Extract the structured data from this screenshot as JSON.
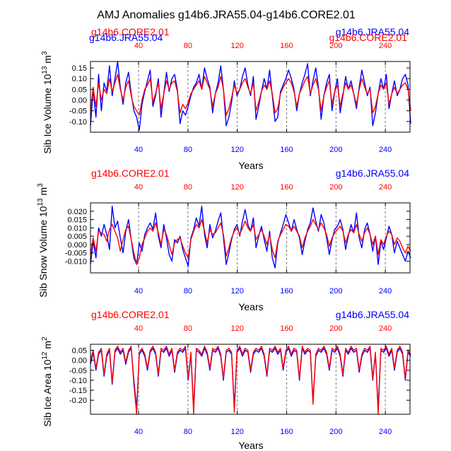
{
  "title": "AMJ Anomalies g14b6.JRA55.04-g14b6.CORE2.01",
  "colors": {
    "red": "#ff0000",
    "blue": "#0000ff",
    "black": "#000000",
    "grid": "#555555"
  },
  "chart_data": [
    {
      "type": "line",
      "ylabel_main": "Sib Ice Volume 10",
      "ylabel_exp": "13",
      "ylabel_unit": " m",
      "ylabel_unit_exp": "3",
      "xlabel": "Years",
      "xlim": [
        1,
        260
      ],
      "ylim": [
        -0.15,
        0.18
      ],
      "yticks": [
        -0.1,
        -0.05,
        0.0,
        0.05,
        0.1,
        0.15
      ],
      "ytick_labels": [
        "-0.10",
        "-0.05",
        "0.00",
        "0.05",
        "0.10",
        "0.15"
      ],
      "x_red_ticks": [
        40,
        80,
        120,
        160,
        200,
        240
      ],
      "x_blue_ticks": [
        40,
        80,
        120,
        160,
        200,
        240
      ],
      "gridlines_x": [
        40,
        80,
        120,
        160,
        200,
        240
      ],
      "legend_red": "g14b6.CORE2.01",
      "legend_blue": "g14b6.JRA55.04",
      "legend_red_overlap": "g14b6.CORE2.01",
      "legend_blue_overlap": "g14b6.JRA55.04",
      "series": [
        {
          "name": "g14b6.JRA55.04",
          "color": "blue",
          "x_start": 1,
          "x_step": 2.2,
          "values": [
            -0.12,
            0.05,
            -0.08,
            0.12,
            -0.05,
            0.08,
            0.04,
            0.16,
            0.02,
            0.1,
            0.18,
            0.06,
            -0.02,
            0.08,
            0.13,
            0.03,
            -0.05,
            -0.08,
            -0.14,
            -0.02,
            0.04,
            0.09,
            0.14,
            -0.03,
            0.02,
            0.1,
            -0.08,
            0.03,
            0.13,
            0.04,
            0.1,
            0.12,
            0.05,
            -0.11,
            -0.05,
            -0.07,
            -0.03,
            0.02,
            0.06,
            0.08,
            0.12,
            0.05,
            0.15,
            0.1,
            0.06,
            -0.06,
            0.03,
            0.08,
            0.16,
            0.05,
            -0.12,
            -0.08,
            -0.01,
            0.09,
            0.02,
            0.05,
            0.11,
            0.15,
            0.07,
            0.02,
            0.11,
            -0.09,
            -0.03,
            0.04,
            0.1,
            0.05,
            0.14,
            0.02,
            -0.1,
            -0.08,
            0.04,
            0.07,
            0.1,
            0.14,
            0.1,
            0.05,
            -0.05,
            0.03,
            0.08,
            0.12,
            0.17,
            0.02,
            0.09,
            0.15,
            0.06,
            -0.09,
            0.02,
            0.08,
            0.12,
            -0.05,
            0.04,
            0.1,
            -0.06,
            0.02,
            0.11,
            0.05,
            0.09,
            0.03,
            -0.04,
            0.06,
            0.14,
            0.08,
            0.02,
            0.06,
            -0.12,
            -0.06,
            0.03,
            0.1,
            0.05,
            0.12,
            -0.04,
            0.03,
            0.09,
            0.02,
            0.05,
            0.1,
            0.12,
            0.07,
            -0.11
          ]
        },
        {
          "name": "g14b6.CORE2.01",
          "color": "red",
          "x_start": 1,
          "x_step": 2.2,
          "values": [
            -0.05,
            0.06,
            -0.03,
            0.08,
            0.0,
            0.05,
            0.03,
            0.1,
            0.04,
            0.08,
            0.12,
            0.05,
            0.0,
            0.06,
            0.09,
            0.02,
            -0.03,
            -0.05,
            -0.07,
            0.0,
            0.05,
            0.07,
            0.1,
            -0.01,
            0.03,
            0.08,
            -0.04,
            0.03,
            0.09,
            0.05,
            0.08,
            0.09,
            0.04,
            -0.06,
            -0.02,
            -0.04,
            -0.01,
            0.03,
            0.05,
            0.07,
            0.09,
            0.05,
            0.11,
            0.08,
            0.05,
            -0.03,
            0.03,
            0.06,
            0.11,
            0.05,
            -0.07,
            -0.04,
            0.01,
            0.07,
            0.03,
            0.05,
            0.08,
            0.1,
            0.06,
            0.03,
            0.08,
            -0.05,
            -0.01,
            0.04,
            0.07,
            0.05,
            0.09,
            0.03,
            -0.06,
            -0.04,
            0.03,
            0.06,
            0.08,
            0.1,
            0.08,
            0.04,
            -0.03,
            0.03,
            0.06,
            0.09,
            0.11,
            0.03,
            0.07,
            0.1,
            0.05,
            -0.05,
            0.02,
            0.06,
            0.09,
            -0.02,
            0.04,
            0.07,
            -0.03,
            0.03,
            0.08,
            0.05,
            0.07,
            0.03,
            -0.02,
            0.05,
            0.1,
            0.06,
            0.03,
            0.05,
            -0.06,
            -0.03,
            0.03,
            0.07,
            0.05,
            0.08,
            -0.02,
            0.03,
            0.06,
            0.03,
            0.05,
            0.07,
            0.08,
            0.05,
            -0.05
          ]
        }
      ]
    },
    {
      "type": "line",
      "ylabel_main": "Sib Snow Volume 10",
      "ylabel_exp": "13",
      "ylabel_unit": " m",
      "ylabel_unit_exp": "3",
      "xlabel": "Years",
      "xlim": [
        1,
        260
      ],
      "ylim": [
        -0.017,
        0.025
      ],
      "yticks": [
        -0.01,
        -0.005,
        0.0,
        0.005,
        0.01,
        0.015,
        0.02
      ],
      "ytick_labels": [
        "-0.010",
        "-0.005",
        "0.000",
        "0.005",
        "0.010",
        "0.015",
        "0.020"
      ],
      "x_red_ticks": [
        40,
        80,
        120,
        160,
        200,
        240
      ],
      "x_blue_ticks": [
        40,
        80,
        120,
        160,
        200,
        240
      ],
      "gridlines_x": [
        40,
        80,
        120,
        160,
        200,
        240
      ],
      "legend_red": "g14b6.CORE2.01",
      "legend_blue": "g14b6.JRA55.04",
      "series": [
        {
          "name": "g14b6.JRA55.04",
          "color": "blue",
          "x_start": 1,
          "x_step": 2.2,
          "values": [
            -0.012,
            0.002,
            -0.008,
            0.01,
            0.005,
            0.012,
            0.006,
            -0.003,
            0.023,
            0.01,
            0.014,
            0.004,
            -0.005,
            0.008,
            0.015,
            0.003,
            -0.008,
            -0.012,
            0.001,
            -0.004,
            0.006,
            0.01,
            0.013,
            0.009,
            0.019,
            0.005,
            -0.002,
            0.012,
            0.004,
            -0.006,
            -0.01,
            0.003,
            0.001,
            0.005,
            -0.003,
            -0.008,
            -0.013,
            0.004,
            0.009,
            0.016,
            0.011,
            0.023,
            0.006,
            -0.002,
            0.012,
            0.004,
            0.008,
            0.014,
            0.019,
            0.004,
            -0.012,
            -0.005,
            0.003,
            0.009,
            0.012,
            0.005,
            0.014,
            0.021,
            0.012,
            0.008,
            0.016,
            -0.002,
            0.005,
            0.011,
            0.003,
            -0.004,
            0.008,
            -0.008,
            -0.014,
            0.001,
            0.007,
            0.012,
            0.018,
            0.013,
            0.008,
            0.015,
            0.009,
            0.004,
            -0.006,
            0.002,
            0.009,
            0.013,
            0.022,
            0.014,
            0.008,
            0.018,
            0.013,
            0.004,
            -0.006,
            0.003,
            0.009,
            0.011,
            0.015,
            0.009,
            -0.003,
            0.005,
            0.012,
            0.007,
            0.019,
            0.004,
            -0.002,
            0.009,
            0.013,
            0.006,
            -0.004,
            0.005,
            -0.012,
            0.002,
            -0.003,
            0.004,
            0.011,
            0.006,
            -0.005,
            0.002,
            -0.002,
            -0.006,
            -0.01,
            -0.004,
            -0.008
          ]
        },
        {
          "name": "g14b6.CORE2.01",
          "color": "red",
          "x_start": 1,
          "x_step": 2.2,
          "values": [
            -0.006,
            0.004,
            -0.004,
            0.008,
            0.007,
            0.006,
            0.002,
            0.009,
            0.012,
            0.008,
            0.004,
            -0.004,
            0.003,
            0.009,
            0.011,
            0.003,
            -0.005,
            -0.012,
            -0.008,
            0.0,
            0.004,
            0.008,
            0.01,
            0.008,
            0.013,
            0.007,
            0.0,
            0.009,
            0.006,
            0.0,
            -0.006,
            0.001,
            0.003,
            0.004,
            -0.001,
            -0.005,
            -0.008,
            0.003,
            0.008,
            0.012,
            0.01,
            0.015,
            0.008,
            0.001,
            0.009,
            0.006,
            0.007,
            0.01,
            0.013,
            0.006,
            -0.007,
            -0.002,
            0.004,
            0.008,
            0.01,
            0.006,
            0.01,
            0.014,
            0.01,
            0.008,
            0.012,
            0.003,
            0.006,
            0.009,
            0.005,
            0.0,
            0.006,
            -0.003,
            -0.008,
            0.002,
            0.006,
            0.009,
            0.012,
            0.011,
            0.008,
            0.011,
            0.008,
            0.005,
            -0.002,
            0.004,
            0.008,
            0.011,
            0.015,
            0.012,
            0.009,
            0.013,
            0.01,
            0.006,
            -0.001,
            0.004,
            0.007,
            0.009,
            0.011,
            0.008,
            0.001,
            0.006,
            0.009,
            0.007,
            0.012,
            0.006,
            0.002,
            0.007,
            0.01,
            0.006,
            0.0,
            0.005,
            -0.006,
            0.003,
            0.0,
            0.005,
            0.008,
            0.006,
            0.0,
            0.004,
            0.002,
            -0.002,
            -0.005,
            -0.001,
            -0.004
          ]
        }
      ]
    },
    {
      "type": "line",
      "ylabel_main": "Sib Ice Area 10",
      "ylabel_exp": "12",
      "ylabel_unit": " m",
      "ylabel_unit_exp": "2",
      "xlabel": "Years",
      "xlim": [
        1,
        260
      ],
      "ylim": [
        -0.27,
        0.08
      ],
      "yticks": [
        -0.2,
        -0.15,
        -0.1,
        -0.05,
        0.0,
        0.05
      ],
      "ytick_labels": [
        "-0.20",
        "-0.15",
        "-0.10",
        "-0.05",
        "0.00",
        "0.05"
      ],
      "x_red_ticks": [
        40,
        80,
        120,
        160,
        200,
        240
      ],
      "x_blue_ticks": [
        40,
        80,
        120,
        160,
        200,
        240
      ],
      "gridlines_x": [
        40,
        80,
        120,
        160,
        200,
        240
      ],
      "legend_red": "g14b6.CORE2.01",
      "legend_blue": "g14b6.JRA55.04",
      "series": [
        {
          "name": "g14b6.JRA55.04",
          "color": "blue",
          "x_start": 1,
          "x_step": 2.2,
          "values": [
            -0.02,
            0.04,
            -0.05,
            0.03,
            0.05,
            -0.08,
            0.02,
            0.05,
            -0.12,
            0.04,
            0.06,
            0.03,
            0.05,
            -0.02,
            0.04,
            0.06,
            -0.1,
            -0.24,
            0.03,
            0.05,
            0.02,
            -0.05,
            0.04,
            0.06,
            0.03,
            -0.08,
            0.05,
            0.04,
            0.06,
            0.02,
            0.05,
            -0.06,
            0.03,
            0.05,
            0.04,
            0.06,
            -0.1,
            0.03,
            -0.24,
            0.05,
            0.04,
            0.02,
            0.06,
            0.03,
            -0.05,
            0.05,
            0.04,
            0.06,
            0.02,
            -0.1,
            0.04,
            0.05,
            0.03,
            -0.23,
            0.04,
            0.06,
            0.02,
            0.05,
            0.04,
            -0.06,
            0.03,
            0.05,
            0.04,
            0.06,
            0.02,
            -0.08,
            0.05,
            0.04,
            0.06,
            0.03,
            0.05,
            -0.05,
            0.04,
            0.06,
            0.02,
            0.05,
            0.04,
            -0.1,
            0.06,
            0.03,
            0.05,
            0.04,
            -0.2,
            0.02,
            0.05,
            0.04,
            0.06,
            0.03,
            -0.05,
            0.05,
            0.04,
            0.06,
            0.02,
            -0.08,
            0.05,
            0.03,
            0.06,
            0.04,
            0.05,
            -0.06,
            0.02,
            0.05,
            0.04,
            0.06,
            -0.1,
            0.03,
            -0.24,
            0.05,
            0.04,
            0.06,
            0.02,
            0.05,
            -0.05,
            0.04,
            0.06,
            0.03,
            -0.1,
            0.04,
            0.02
          ]
        },
        {
          "name": "g14b6.CORE2.01",
          "color": "red",
          "x_start": 1,
          "x_step": 2.2,
          "values": [
            0.0,
            0.05,
            -0.04,
            0.04,
            0.06,
            -0.07,
            0.03,
            0.06,
            -0.11,
            0.05,
            0.07,
            0.04,
            0.06,
            -0.01,
            0.05,
            0.07,
            -0.12,
            -0.27,
            0.04,
            0.06,
            0.03,
            -0.04,
            0.05,
            0.07,
            0.04,
            -0.07,
            0.06,
            0.05,
            0.07,
            0.03,
            0.06,
            -0.05,
            0.04,
            0.06,
            0.05,
            0.07,
            -0.09,
            0.04,
            -0.27,
            0.06,
            0.05,
            0.03,
            0.07,
            0.04,
            -0.04,
            0.06,
            0.05,
            0.07,
            0.03,
            -0.09,
            0.05,
            0.06,
            0.04,
            -0.26,
            0.05,
            0.07,
            0.03,
            0.06,
            0.05,
            -0.05,
            0.04,
            0.06,
            0.05,
            0.07,
            0.03,
            -0.07,
            0.06,
            0.05,
            0.07,
            0.04,
            0.06,
            -0.04,
            0.05,
            0.07,
            0.03,
            0.06,
            0.05,
            -0.09,
            0.07,
            0.04,
            0.06,
            0.05,
            -0.22,
            0.03,
            0.06,
            0.05,
            0.07,
            0.04,
            -0.04,
            0.06,
            0.05,
            0.07,
            0.03,
            -0.07,
            0.06,
            0.04,
            0.07,
            0.05,
            0.06,
            -0.05,
            0.03,
            0.06,
            0.05,
            0.07,
            -0.09,
            0.04,
            -0.27,
            0.06,
            0.05,
            0.07,
            0.03,
            0.06,
            -0.04,
            0.05,
            0.07,
            0.04,
            -0.09,
            0.05,
            0.03
          ]
        }
      ]
    }
  ]
}
